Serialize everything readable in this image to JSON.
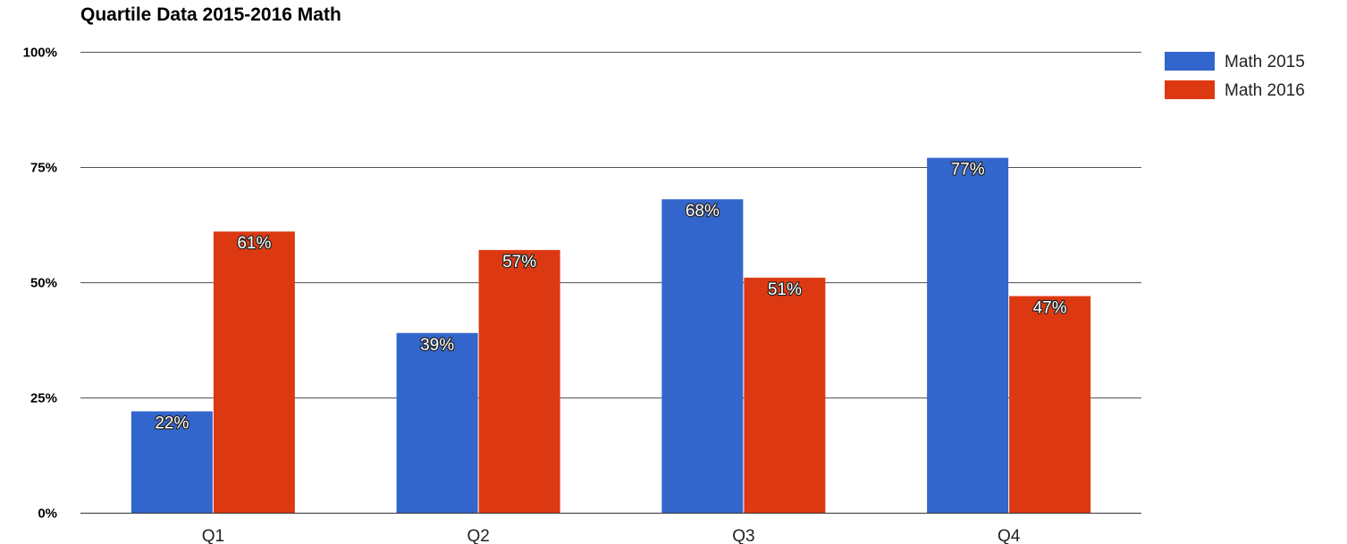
{
  "chart_data": {
    "type": "bar",
    "title": "Quartile Data 2015-2016 Math",
    "xlabel": "",
    "ylabel": "",
    "categories": [
      "Q1",
      "Q2",
      "Q3",
      "Q4"
    ],
    "series": [
      {
        "name": "Math 2015",
        "color": "#3366CC",
        "values": [
          22,
          39,
          68,
          77
        ],
        "labels": [
          "22%",
          "39%",
          "68%",
          "77%"
        ]
      },
      {
        "name": "Math 2016",
        "color": "#DC3912",
        "values": [
          61,
          57,
          51,
          47
        ],
        "labels": [
          "61%",
          "57%",
          "51%",
          "47%"
        ]
      }
    ],
    "ylim": [
      0,
      100
    ],
    "yticks": [
      0,
      25,
      50,
      75,
      100
    ],
    "ytick_labels": [
      "0%",
      "25%",
      "50%",
      "75%",
      "100%"
    ],
    "grid": true,
    "legend_position": "right"
  }
}
